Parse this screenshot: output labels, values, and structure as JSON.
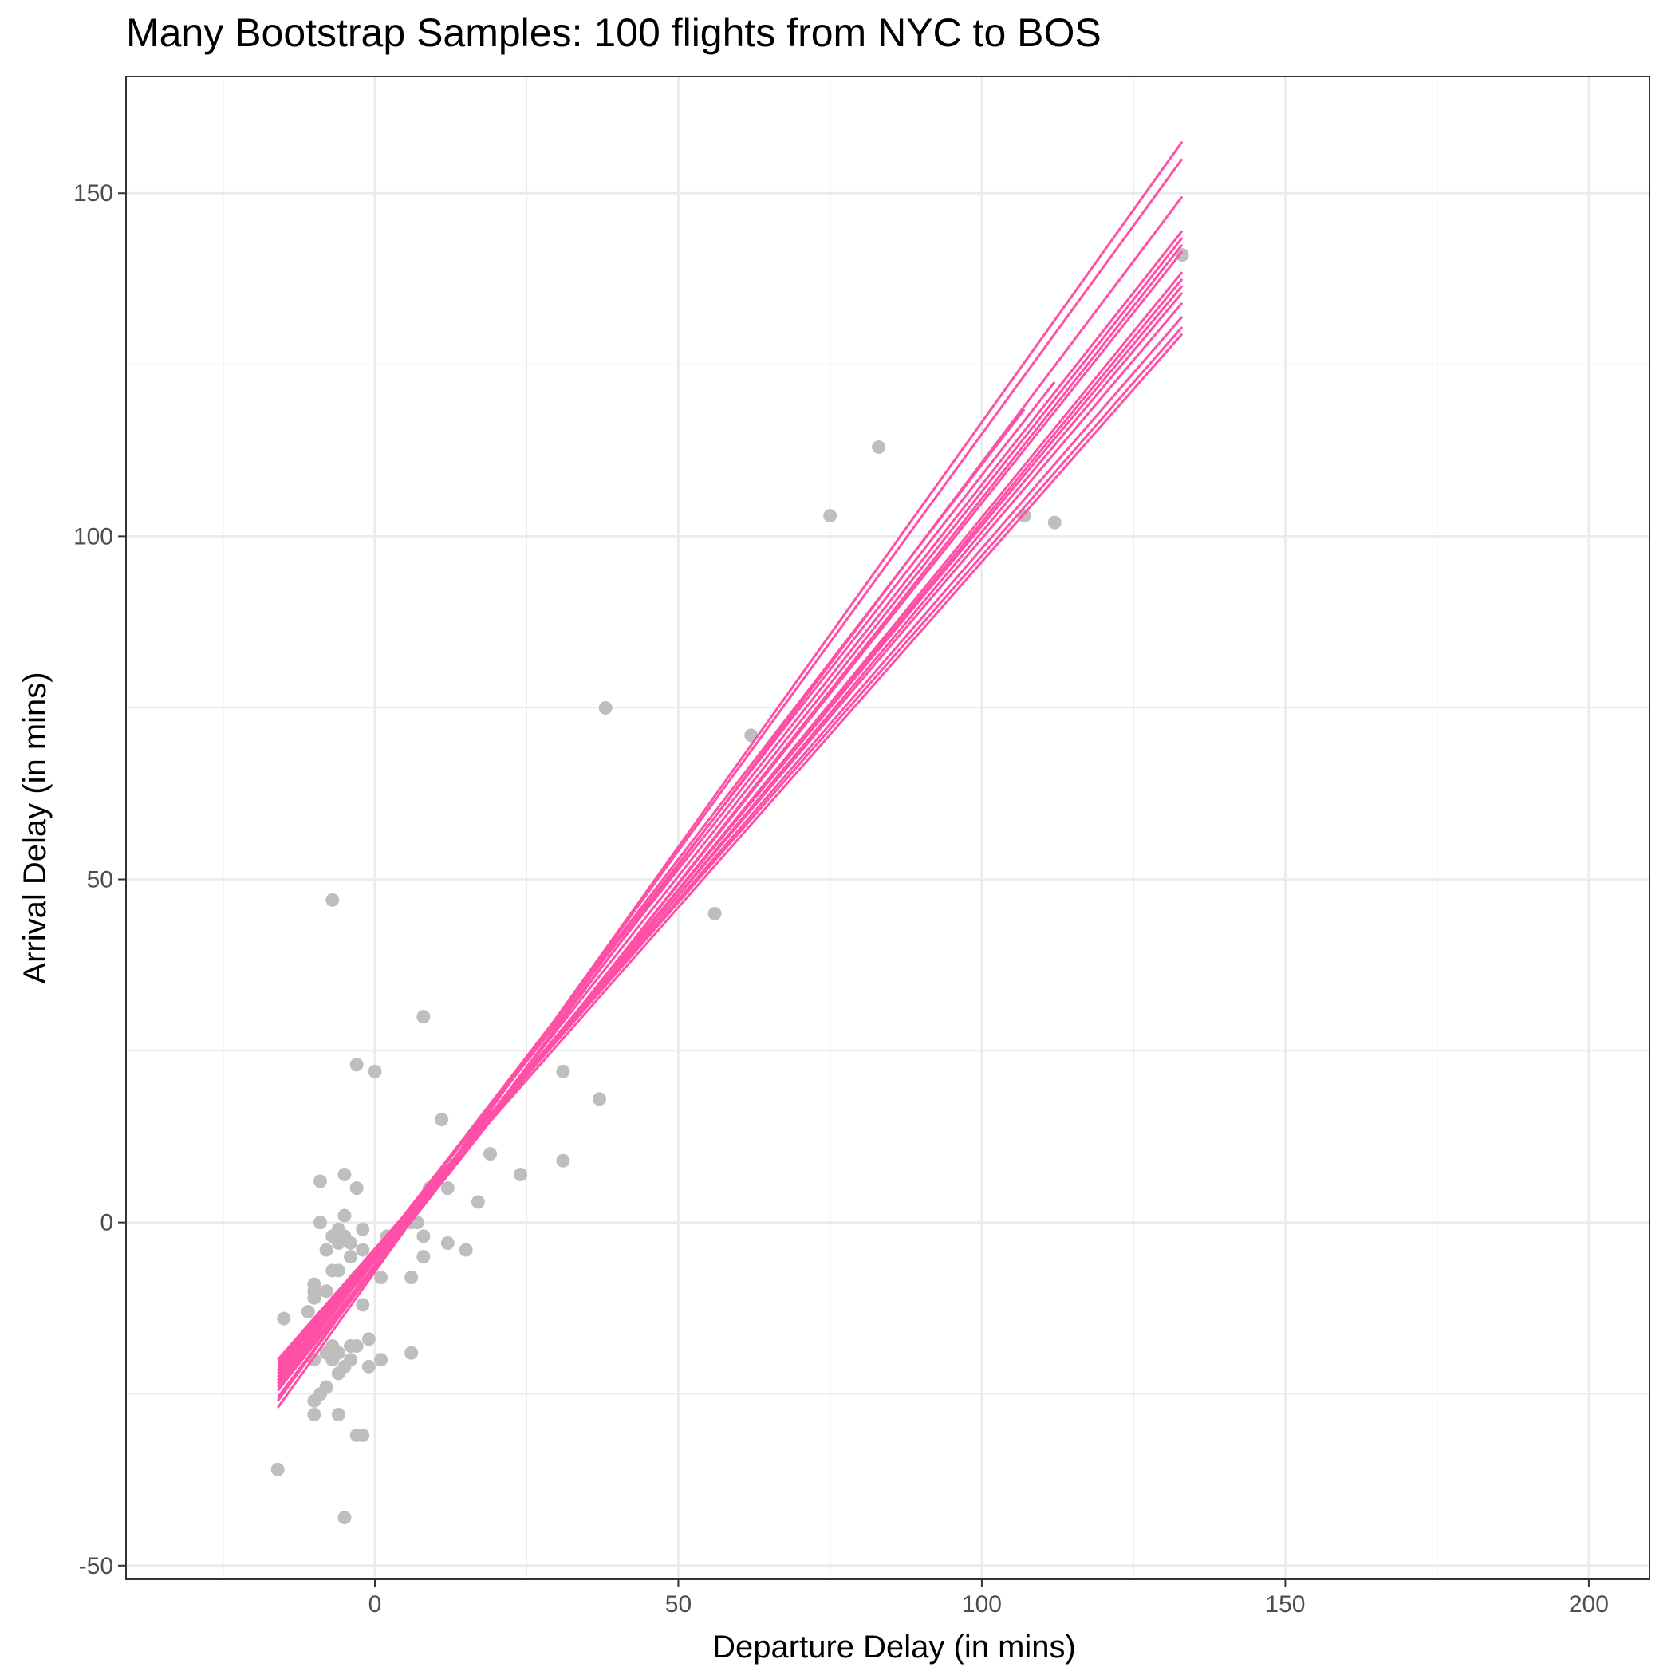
{
  "chart_data": {
    "type": "scatter",
    "title": "Many Bootstrap Samples: 100 flights from NYC to BOS",
    "xlabel": "Departure Delay (in mins)",
    "ylabel": "Arrival Delay (in mins)",
    "xlim": [
      -41,
      210
    ],
    "ylim": [
      -52,
      167
    ],
    "x_ticks": [
      0,
      50,
      100,
      150,
      200
    ],
    "x_tick_labels": [
      "0",
      "50",
      "100",
      "150",
      "200"
    ],
    "y_ticks": [
      -50,
      0,
      50,
      100,
      150
    ],
    "y_tick_labels": [
      "-50",
      "0",
      "50",
      "100",
      "150"
    ],
    "x_minor_ticks": [
      -25,
      25,
      75,
      125,
      175
    ],
    "y_minor_ticks": [
      -25,
      25,
      75,
      125
    ],
    "grid": true,
    "colors": {
      "points": "#bebebe",
      "lines": "#ff4fa7",
      "grid": "#ebebeb",
      "frame": "#333333"
    },
    "series": [
      {
        "type": "scatter",
        "points": [
          {
            "x": -16,
            "y": -36
          },
          {
            "x": -15,
            "y": -14
          },
          {
            "x": -11,
            "y": -13
          },
          {
            "x": -10,
            "y": -9
          },
          {
            "x": -10,
            "y": -10
          },
          {
            "x": -10,
            "y": -11
          },
          {
            "x": -10,
            "y": -20
          },
          {
            "x": -10,
            "y": -26
          },
          {
            "x": -10,
            "y": -28
          },
          {
            "x": -9,
            "y": 6
          },
          {
            "x": -9,
            "y": 0
          },
          {
            "x": -9,
            "y": -25
          },
          {
            "x": -8,
            "y": -4
          },
          {
            "x": -8,
            "y": -10
          },
          {
            "x": -8,
            "y": -19
          },
          {
            "x": -8,
            "y": -24
          },
          {
            "x": -7,
            "y": 47
          },
          {
            "x": -7,
            "y": -2
          },
          {
            "x": -7,
            "y": -7
          },
          {
            "x": -7,
            "y": -18
          },
          {
            "x": -7,
            "y": -20
          },
          {
            "x": -6,
            "y": -1
          },
          {
            "x": -6,
            "y": -3
          },
          {
            "x": -6,
            "y": -7
          },
          {
            "x": -6,
            "y": -19
          },
          {
            "x": -6,
            "y": -22
          },
          {
            "x": -6,
            "y": -28
          },
          {
            "x": -5,
            "y": 7
          },
          {
            "x": -5,
            "y": 1
          },
          {
            "x": -5,
            "y": -2
          },
          {
            "x": -5,
            "y": -21
          },
          {
            "x": -5,
            "y": -43
          },
          {
            "x": -4,
            "y": -3
          },
          {
            "x": -4,
            "y": -5
          },
          {
            "x": -4,
            "y": -18
          },
          {
            "x": -4,
            "y": -20
          },
          {
            "x": -3,
            "y": 23
          },
          {
            "x": -3,
            "y": 5
          },
          {
            "x": -3,
            "y": -8
          },
          {
            "x": -3,
            "y": -18
          },
          {
            "x": -3,
            "y": -31
          },
          {
            "x": -2,
            "y": -1
          },
          {
            "x": -2,
            "y": -4
          },
          {
            "x": -2,
            "y": -12
          },
          {
            "x": -2,
            "y": -31
          },
          {
            "x": -1,
            "y": -17
          },
          {
            "x": -1,
            "y": -21
          },
          {
            "x": 0,
            "y": 22
          },
          {
            "x": 1,
            "y": -8
          },
          {
            "x": 1,
            "y": -20
          },
          {
            "x": 2,
            "y": -2
          },
          {
            "x": 4,
            "y": -1
          },
          {
            "x": 6,
            "y": 0
          },
          {
            "x": 6,
            "y": -8
          },
          {
            "x": 6,
            "y": -19
          },
          {
            "x": 7,
            "y": 0
          },
          {
            "x": 8,
            "y": 30
          },
          {
            "x": 8,
            "y": -2
          },
          {
            "x": 8,
            "y": -5
          },
          {
            "x": 9,
            "y": 5
          },
          {
            "x": 11,
            "y": 15
          },
          {
            "x": 12,
            "y": 5
          },
          {
            "x": 12,
            "y": -3
          },
          {
            "x": 15,
            "y": -4
          },
          {
            "x": 17,
            "y": 3
          },
          {
            "x": 19,
            "y": 10
          },
          {
            "x": 24,
            "y": 7
          },
          {
            "x": 31,
            "y": 22
          },
          {
            "x": 31,
            "y": 9
          },
          {
            "x": 37,
            "y": 18
          },
          {
            "x": 38,
            "y": 75
          },
          {
            "x": 56,
            "y": 45
          },
          {
            "x": 62,
            "y": 71
          },
          {
            "x": 75,
            "y": 103
          },
          {
            "x": 83,
            "y": 113
          },
          {
            "x": 107,
            "y": 103
          },
          {
            "x": 112,
            "y": 102
          },
          {
            "x": 133,
            "y": 141
          }
        ]
      },
      {
        "type": "line",
        "lines": [
          {
            "x0": -16,
            "y0": -22.5,
            "x1": 133,
            "y1": 144.5
          },
          {
            "x0": -16,
            "y0": -23.5,
            "x1": 133,
            "y1": 143.5
          },
          {
            "x0": -16,
            "y0": -24.5,
            "x1": 133,
            "y1": 142.5
          },
          {
            "x0": -16,
            "y0": -24,
            "x1": 133,
            "y1": 141.5
          },
          {
            "x0": -16,
            "y0": -23,
            "x1": 133,
            "y1": 138.5
          },
          {
            "x0": -16,
            "y0": -22.5,
            "x1": 133,
            "y1": 137.5
          },
          {
            "x0": -16,
            "y0": -21.5,
            "x1": 133,
            "y1": 136.5
          },
          {
            "x0": -16,
            "y0": -22,
            "x1": 133,
            "y1": 135.5
          },
          {
            "x0": -16,
            "y0": -21,
            "x1": 133,
            "y1": 134
          },
          {
            "x0": -16,
            "y0": -20.5,
            "x1": 133,
            "y1": 132
          },
          {
            "x0": -16,
            "y0": -20,
            "x1": 133,
            "y1": 130.5
          },
          {
            "x0": -15,
            "y0": -19.5,
            "x1": 133,
            "y1": 129.5
          },
          {
            "x0": -16,
            "y0": -27,
            "x1": 133,
            "y1": 157.5
          },
          {
            "x0": -16,
            "y0": -26,
            "x1": 133,
            "y1": 155
          },
          {
            "x0": -16,
            "y0": -25.5,
            "x1": 133,
            "y1": 149.5
          },
          {
            "x0": -16,
            "y0": -22.5,
            "x1": 112,
            "y1": 122.5
          },
          {
            "x0": -16,
            "y0": -23,
            "x1": 107,
            "y1": 118.5
          }
        ]
      }
    ]
  }
}
